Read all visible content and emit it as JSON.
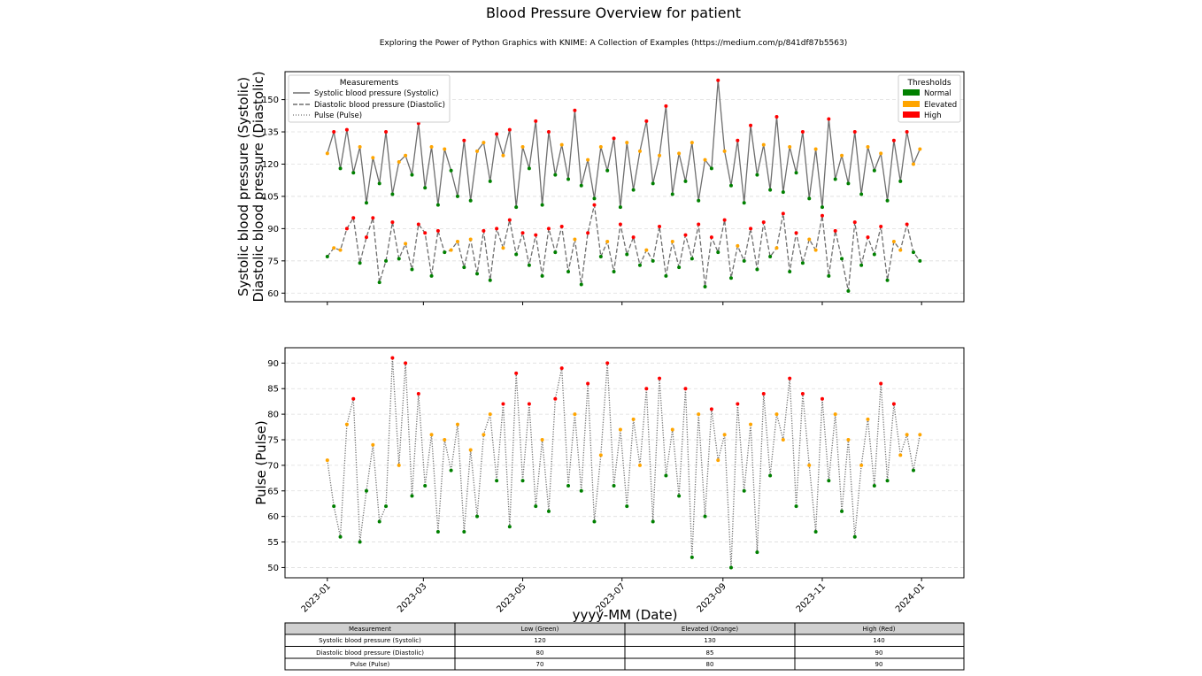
{
  "title": "Blood Pressure Overview for patient",
  "subtitle": "Exploring the Power of Python Graphics with KNIME: A Collection of Examples (https://medium.com/p/841df87b5563)",
  "colors": {
    "normal": "#008000",
    "elevated": "#ffa500",
    "high": "#ff0000",
    "line": "#6e6e6e"
  },
  "chart_data": [
    {
      "type": "line",
      "ylabel_lines": [
        "Systolic blood pressure (Systolic)",
        "Diastolic blood pressure (Diastolic)"
      ],
      "ylim": [
        56,
        163
      ],
      "yticks": [
        60,
        75,
        90,
        105,
        120,
        135,
        150
      ],
      "grid": true,
      "legend": {
        "title": "Measurements",
        "placement": "top-left",
        "entries": [
          "Systolic blood pressure (Systolic)",
          "Diastolic blood pressure (Diastolic)",
          "Pulse (Pulse)"
        ]
      },
      "threshold_legend": {
        "title": "Thresholds",
        "placement": "top-right",
        "entries": [
          "Normal",
          "Elevated",
          "High"
        ]
      },
      "series": [
        {
          "name": "Systolic blood pressure (Systolic)",
          "style": "solid",
          "thresholds": [
            120,
            130,
            140
          ],
          "values": [
            125,
            135,
            118,
            136,
            116,
            128,
            102,
            123,
            111,
            135,
            106,
            121,
            124,
            115,
            139,
            109,
            128,
            101,
            127,
            117,
            105,
            131,
            103,
            126,
            130,
            112,
            134,
            124,
            136,
            100,
            128,
            118,
            140,
            101,
            135,
            115,
            129,
            113,
            145,
            110,
            122,
            104,
            128,
            117,
            132,
            100,
            130,
            108,
            126,
            140,
            111,
            124,
            147,
            106,
            125,
            112,
            130,
            103,
            122,
            118,
            159,
            126,
            110,
            131,
            102,
            138,
            115,
            129,
            108,
            142,
            107,
            128,
            116,
            135,
            104,
            127,
            100,
            141,
            113,
            124,
            111,
            135,
            106,
            128,
            117,
            125,
            103,
            131,
            112,
            135,
            120,
            127
          ]
        },
        {
          "name": "Diastolic blood pressure (Diastolic)",
          "style": "dashed",
          "thresholds": [
            80,
            85,
            90
          ],
          "values": [
            77,
            81,
            80,
            90,
            95,
            74,
            86,
            95,
            65,
            75,
            93,
            76,
            83,
            71,
            92,
            88,
            68,
            89,
            79,
            80,
            84,
            72,
            85,
            69,
            89,
            66,
            90,
            81,
            94,
            78,
            88,
            73,
            87,
            68,
            90,
            79,
            91,
            70,
            85,
            64,
            88,
            101,
            77,
            84,
            70,
            92,
            78,
            86,
            73,
            80,
            75,
            91,
            68,
            84,
            72,
            87,
            76,
            92,
            63,
            86,
            79,
            94,
            67,
            82,
            75,
            90,
            71,
            93,
            77,
            81,
            97,
            70,
            88,
            74,
            85,
            80,
            96,
            68,
            89,
            76,
            61,
            93,
            73,
            86,
            78,
            91,
            66,
            84,
            80,
            92,
            79,
            75
          ]
        }
      ]
    },
    {
      "type": "line",
      "ylabel": "Pulse (Pulse)",
      "xlabel": "yyyy-MM (Date)",
      "ylim": [
        48,
        93
      ],
      "yticks": [
        50,
        55,
        60,
        65,
        70,
        75,
        80,
        85,
        90
      ],
      "xlim": [
        "2022-12-06",
        "2024-01-27"
      ],
      "xticks": [
        "2023-01",
        "2023-03",
        "2023-05",
        "2023-07",
        "2023-09",
        "2023-11",
        "2024-01"
      ],
      "grid": true,
      "series": [
        {
          "name": "Pulse (Pulse)",
          "style": "dotted",
          "thresholds": [
            70,
            80,
            90
          ],
          "values": [
            71,
            62,
            56,
            78,
            83,
            55,
            65,
            74,
            59,
            62,
            91,
            70,
            90,
            64,
            84,
            66,
            76,
            57,
            75,
            69,
            78,
            57,
            73,
            60,
            76,
            80,
            67,
            82,
            58,
            88,
            67,
            82,
            62,
            75,
            61,
            83,
            89,
            66,
            80,
            65,
            86,
            59,
            72,
            90,
            66,
            77,
            62,
            79,
            70,
            85,
            59,
            87,
            68,
            77,
            64,
            85,
            52,
            80,
            60,
            81,
            71,
            76,
            50,
            82,
            65,
            78,
            53,
            84,
            68,
            80,
            75,
            87,
            62,
            84,
            70,
            57,
            83,
            67,
            80,
            61,
            75,
            56,
            70,
            79,
            66,
            86,
            67,
            82,
            72,
            76,
            69,
            76
          ]
        }
      ]
    }
  ],
  "dates": [
    "2023-01-01",
    "2023-01-05",
    "2023-01-09",
    "2023-01-13",
    "2023-01-17",
    "2023-01-21",
    "2023-01-25",
    "2023-01-29",
    "2023-02-02",
    "2023-02-06",
    "2023-02-10",
    "2023-02-14",
    "2023-02-18",
    "2023-02-22",
    "2023-02-26",
    "2023-03-02",
    "2023-03-06",
    "2023-03-10",
    "2023-03-14",
    "2023-03-18",
    "2023-03-22",
    "2023-03-26",
    "2023-03-30",
    "2023-04-03",
    "2023-04-07",
    "2023-04-11",
    "2023-04-15",
    "2023-04-19",
    "2023-04-23",
    "2023-04-27",
    "2023-05-01",
    "2023-05-05",
    "2023-05-09",
    "2023-05-13",
    "2023-05-17",
    "2023-05-21",
    "2023-05-25",
    "2023-05-29",
    "2023-06-02",
    "2023-06-06",
    "2023-06-10",
    "2023-06-14",
    "2023-06-18",
    "2023-06-22",
    "2023-06-26",
    "2023-06-30",
    "2023-07-04",
    "2023-07-08",
    "2023-07-12",
    "2023-07-16",
    "2023-07-20",
    "2023-07-24",
    "2023-07-28",
    "2023-08-01",
    "2023-08-05",
    "2023-08-09",
    "2023-08-13",
    "2023-08-17",
    "2023-08-21",
    "2023-08-25",
    "2023-08-29",
    "2023-09-02",
    "2023-09-06",
    "2023-09-10",
    "2023-09-14",
    "2023-09-18",
    "2023-09-22",
    "2023-09-26",
    "2023-09-30",
    "2023-10-04",
    "2023-10-08",
    "2023-10-12",
    "2023-10-16",
    "2023-10-20",
    "2023-10-24",
    "2023-10-28",
    "2023-11-01",
    "2023-11-05",
    "2023-11-09",
    "2023-11-13",
    "2023-11-17",
    "2023-11-21",
    "2023-11-25",
    "2023-11-29",
    "2023-12-03",
    "2023-12-07",
    "2023-12-11",
    "2023-12-15",
    "2023-12-19",
    "2023-12-23",
    "2023-12-27",
    "2023-12-31"
  ],
  "table": {
    "headers": [
      "Measurement",
      "Low (Green)",
      "Elevated (Orange)",
      "High (Red)"
    ],
    "rows": [
      [
        "Systolic blood pressure (Systolic)",
        "120",
        "130",
        "140"
      ],
      [
        "Diastolic blood pressure (Diastolic)",
        "80",
        "85",
        "90"
      ],
      [
        "Pulse (Pulse)",
        "70",
        "80",
        "90"
      ]
    ]
  }
}
